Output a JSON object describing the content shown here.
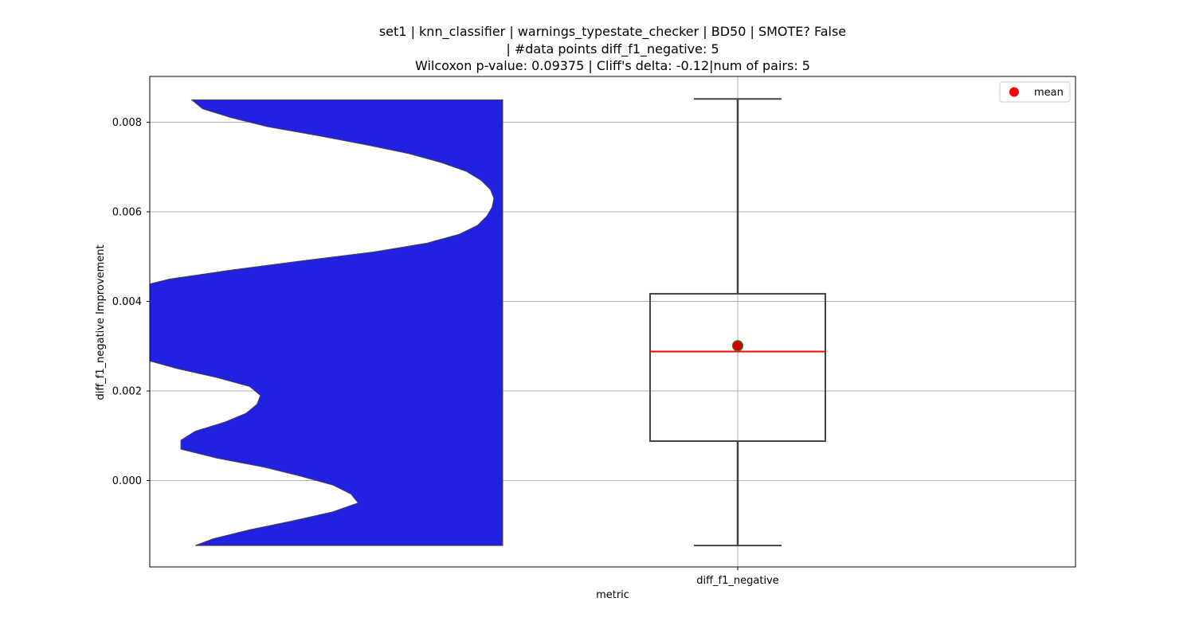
{
  "chart_data": {
    "type": "violin+box",
    "title_lines": [
      "set1 | knn_classifier | warnings_typestate_checker | BD50 | SMOTE? False",
      "| #data points diff_f1_negative: 5",
      "Wilcoxon p-value: 0.09375 | Cliff's delta: -0.12|num of pairs: 5"
    ],
    "xlabel": "metric",
    "ylabel": "diff_f1_negative Improvement",
    "categories": [
      "diff_f1_negative"
    ],
    "ylim": [
      -0.00195,
      0.00905
    ],
    "yticks": [
      0.0,
      0.002,
      0.004,
      0.006,
      0.008
    ],
    "ytick_labels": [
      "0.000",
      "0.002",
      "0.004",
      "0.006",
      "0.008"
    ],
    "grid": true,
    "legend": {
      "placement": "top-right",
      "entries": [
        {
          "label": "mean",
          "color": "#ff0000"
        }
      ]
    },
    "box": {
      "min": -0.00145,
      "q1": 0.00088,
      "median": 0.00288,
      "q3": 0.00417,
      "max": 0.00852,
      "mean": 0.00301
    },
    "violin": {
      "color": "#2121df",
      "density_profile": [
        [
          -0.00145,
          0.17
        ],
        [
          -0.0013,
          0.22
        ],
        [
          -0.0011,
          0.32
        ],
        [
          -0.0009,
          0.44
        ],
        [
          -0.0007,
          0.55
        ],
        [
          -0.0005,
          0.62
        ],
        [
          -0.0003,
          0.6
        ],
        [
          -0.0001,
          0.55
        ],
        [
          0.0001,
          0.46
        ],
        [
          0.0003,
          0.36
        ],
        [
          0.0005,
          0.23
        ],
        [
          0.0007,
          0.13
        ],
        [
          0.0009,
          0.13
        ],
        [
          0.0011,
          0.17
        ],
        [
          0.0013,
          0.25
        ],
        [
          0.0015,
          0.31
        ],
        [
          0.0017,
          0.34
        ],
        [
          0.0019,
          0.35
        ],
        [
          0.0021,
          0.32
        ],
        [
          0.0023,
          0.23
        ],
        [
          0.0025,
          0.12
        ],
        [
          0.0027,
          0.03
        ],
        [
          0.003,
          0.0
        ],
        [
          0.0035,
          0.0
        ],
        [
          0.004,
          0.0
        ],
        [
          0.0043,
          0.0
        ],
        [
          0.0045,
          0.1
        ],
        [
          0.0047,
          0.27
        ],
        [
          0.0049,
          0.46
        ],
        [
          0.0051,
          0.66
        ],
        [
          0.0053,
          0.81
        ],
        [
          0.0055,
          0.9
        ],
        [
          0.0057,
          0.95
        ],
        [
          0.0059,
          0.975
        ],
        [
          0.0061,
          0.99
        ],
        [
          0.0063,
          0.995
        ],
        [
          0.0065,
          0.985
        ],
        [
          0.0067,
          0.96
        ],
        [
          0.0069,
          0.92
        ],
        [
          0.0071,
          0.85
        ],
        [
          0.0073,
          0.76
        ],
        [
          0.0075,
          0.64
        ],
        [
          0.0077,
          0.51
        ],
        [
          0.0079,
          0.37
        ],
        [
          0.0081,
          0.27
        ],
        [
          0.0083,
          0.19
        ],
        [
          0.0085,
          0.16
        ]
      ]
    },
    "colors": {
      "box_edge": "#444444",
      "median": "#ff0000",
      "mean_fill": "#d00000",
      "mean_edge": "#2e8b2e",
      "grid": "#b0b0b0"
    }
  }
}
